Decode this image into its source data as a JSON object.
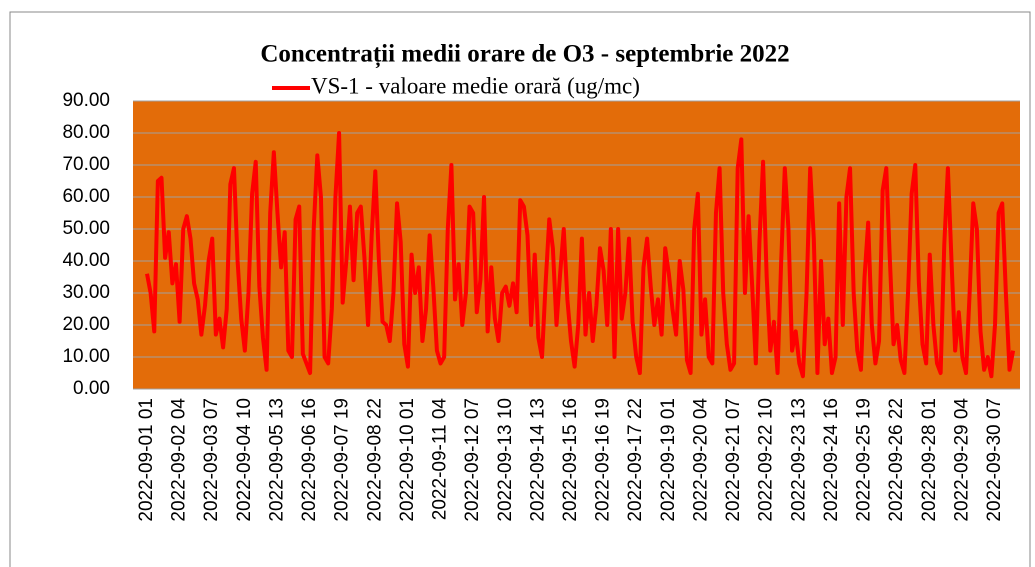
{
  "chart_data": {
    "type": "line",
    "title": "Concentrații medii orare de O3 - septembrie 2022",
    "categories": [
      "2022-09-01 01",
      null,
      null,
      null,
      null,
      null,
      null,
      null,
      null,
      "2022-09-02 04",
      null,
      null,
      null,
      null,
      null,
      null,
      null,
      null,
      "2022-09-03 07",
      null,
      null,
      null,
      null,
      null,
      null,
      null,
      null,
      "2022-09-04 10",
      null,
      null,
      null,
      null,
      null,
      null,
      null,
      null,
      "2022-09-05 13",
      null,
      null,
      null,
      null,
      null,
      null,
      null,
      null,
      "2022-09-06 16",
      null,
      null,
      null,
      null,
      null,
      null,
      null,
      null,
      "2022-09-07 19",
      null,
      null,
      null,
      null,
      null,
      null,
      null,
      null,
      "2022-09-08 22",
      null,
      null,
      null,
      null,
      null,
      null,
      null,
      null,
      "2022-09-10 01",
      null,
      null,
      null,
      null,
      null,
      null,
      null,
      null,
      "2022-09-11 04",
      null,
      null,
      null,
      null,
      null,
      null,
      null,
      null,
      "2022-09-12 07",
      null,
      null,
      null,
      null,
      null,
      null,
      null,
      null,
      "2022-09-13 10",
      null,
      null,
      null,
      null,
      null,
      null,
      null,
      null,
      "2022-09-14 13",
      null,
      null,
      null,
      null,
      null,
      null,
      null,
      null,
      "2022-09-15 16",
      null,
      null,
      null,
      null,
      null,
      null,
      null,
      null,
      "2022-09-16 19",
      null,
      null,
      null,
      null,
      null,
      null,
      null,
      null,
      "2022-09-17 22",
      null,
      null,
      null,
      null,
      null,
      null,
      null,
      null,
      "2022-09-19 01",
      null,
      null,
      null,
      null,
      null,
      null,
      null,
      null,
      "2022-09-20 04",
      null,
      null,
      null,
      null,
      null,
      null,
      null,
      null,
      "2022-09-21 07",
      null,
      null,
      null,
      null,
      null,
      null,
      null,
      null,
      "2022-09-22 10",
      null,
      null,
      null,
      null,
      null,
      null,
      null,
      null,
      "2022-09-23 13",
      null,
      null,
      null,
      null,
      null,
      null,
      null,
      null,
      "2022-09-24 16",
      null,
      null,
      null,
      null,
      null,
      null,
      null,
      null,
      "2022-09-25 19",
      null,
      null,
      null,
      null,
      null,
      null,
      null,
      null,
      "2022-09-26 22",
      null,
      null,
      null,
      null,
      null,
      null,
      null,
      null,
      "2022-09-28 01",
      null,
      null,
      null,
      null,
      null,
      null,
      null,
      null,
      "2022-09-29 04",
      null,
      null,
      null,
      null,
      null,
      null,
      null,
      null,
      "2022-09-30 07",
      null,
      null,
      null,
      null,
      null
    ],
    "series": [
      {
        "name": "VS-1 - valoare medie orară (ug/mc)",
        "color": "#ff0000",
        "values": [
          36,
          30,
          18,
          65,
          66,
          41,
          49,
          33,
          39,
          21,
          50,
          54,
          47,
          33,
          28,
          17,
          26,
          40,
          47,
          17,
          22,
          13,
          25,
          64,
          69,
          40,
          22,
          12,
          30,
          61,
          71,
          32,
          16,
          6,
          55,
          74,
          55,
          38,
          49,
          12,
          10,
          53,
          57,
          11,
          8,
          5,
          50,
          73,
          60,
          10,
          8,
          25,
          60,
          80,
          27,
          40,
          57,
          34,
          55,
          57,
          41,
          20,
          48,
          68,
          40,
          21,
          20,
          15,
          30,
          58,
          46,
          14,
          7,
          42,
          30,
          38,
          15,
          25,
          48,
          32,
          12,
          8,
          10,
          50,
          70,
          28,
          39,
          20,
          30,
          57,
          55,
          24,
          34,
          60,
          18,
          38,
          22,
          15,
          30,
          32,
          26,
          33,
          24,
          59,
          57,
          48,
          20,
          42,
          16,
          10,
          33,
          53,
          44,
          20,
          36,
          50,
          28,
          15,
          7,
          20,
          47,
          17,
          30,
          15,
          26,
          44,
          37,
          20,
          50,
          10,
          50,
          22,
          30,
          47,
          21,
          10,
          5,
          38,
          47,
          32,
          20,
          28,
          17,
          44,
          36,
          25,
          17,
          40,
          31,
          9,
          5,
          50,
          61,
          17,
          28,
          10,
          8,
          55,
          69,
          30,
          14,
          6,
          8,
          69,
          78,
          30,
          54,
          32,
          8,
          46,
          71,
          35,
          12,
          21,
          5,
          40,
          69,
          50,
          12,
          18,
          8,
          4,
          30,
          69,
          47,
          5,
          40,
          14,
          22,
          5,
          10,
          58,
          20,
          60,
          69,
          30,
          12,
          6,
          35,
          52,
          20,
          8,
          15,
          62,
          69,
          40,
          14,
          20,
          9,
          5,
          30,
          61,
          70,
          33,
          14,
          8,
          42,
          20,
          8,
          5,
          45,
          69,
          40,
          12,
          24,
          10,
          5,
          30,
          58,
          50,
          18,
          6,
          10,
          4,
          20,
          55,
          58,
          30,
          6,
          12
        ]
      }
    ],
    "ylim": [
      0,
      90
    ],
    "yticks": [
      {
        "value": 0,
        "label": "0.00"
      },
      {
        "value": 10,
        "label": "10.00"
      },
      {
        "value": 20,
        "label": "20.00"
      },
      {
        "value": 30,
        "label": "30.00"
      },
      {
        "value": 40,
        "label": "40.00"
      },
      {
        "value": 50,
        "label": "50.00"
      },
      {
        "value": 60,
        "label": "60.00"
      },
      {
        "value": 70,
        "label": "70.00"
      },
      {
        "value": 80,
        "label": "80.00"
      },
      {
        "value": 90,
        "label": "90.00"
      }
    ],
    "grid": true,
    "plot_background": "#e36c09",
    "legend": "top"
  }
}
